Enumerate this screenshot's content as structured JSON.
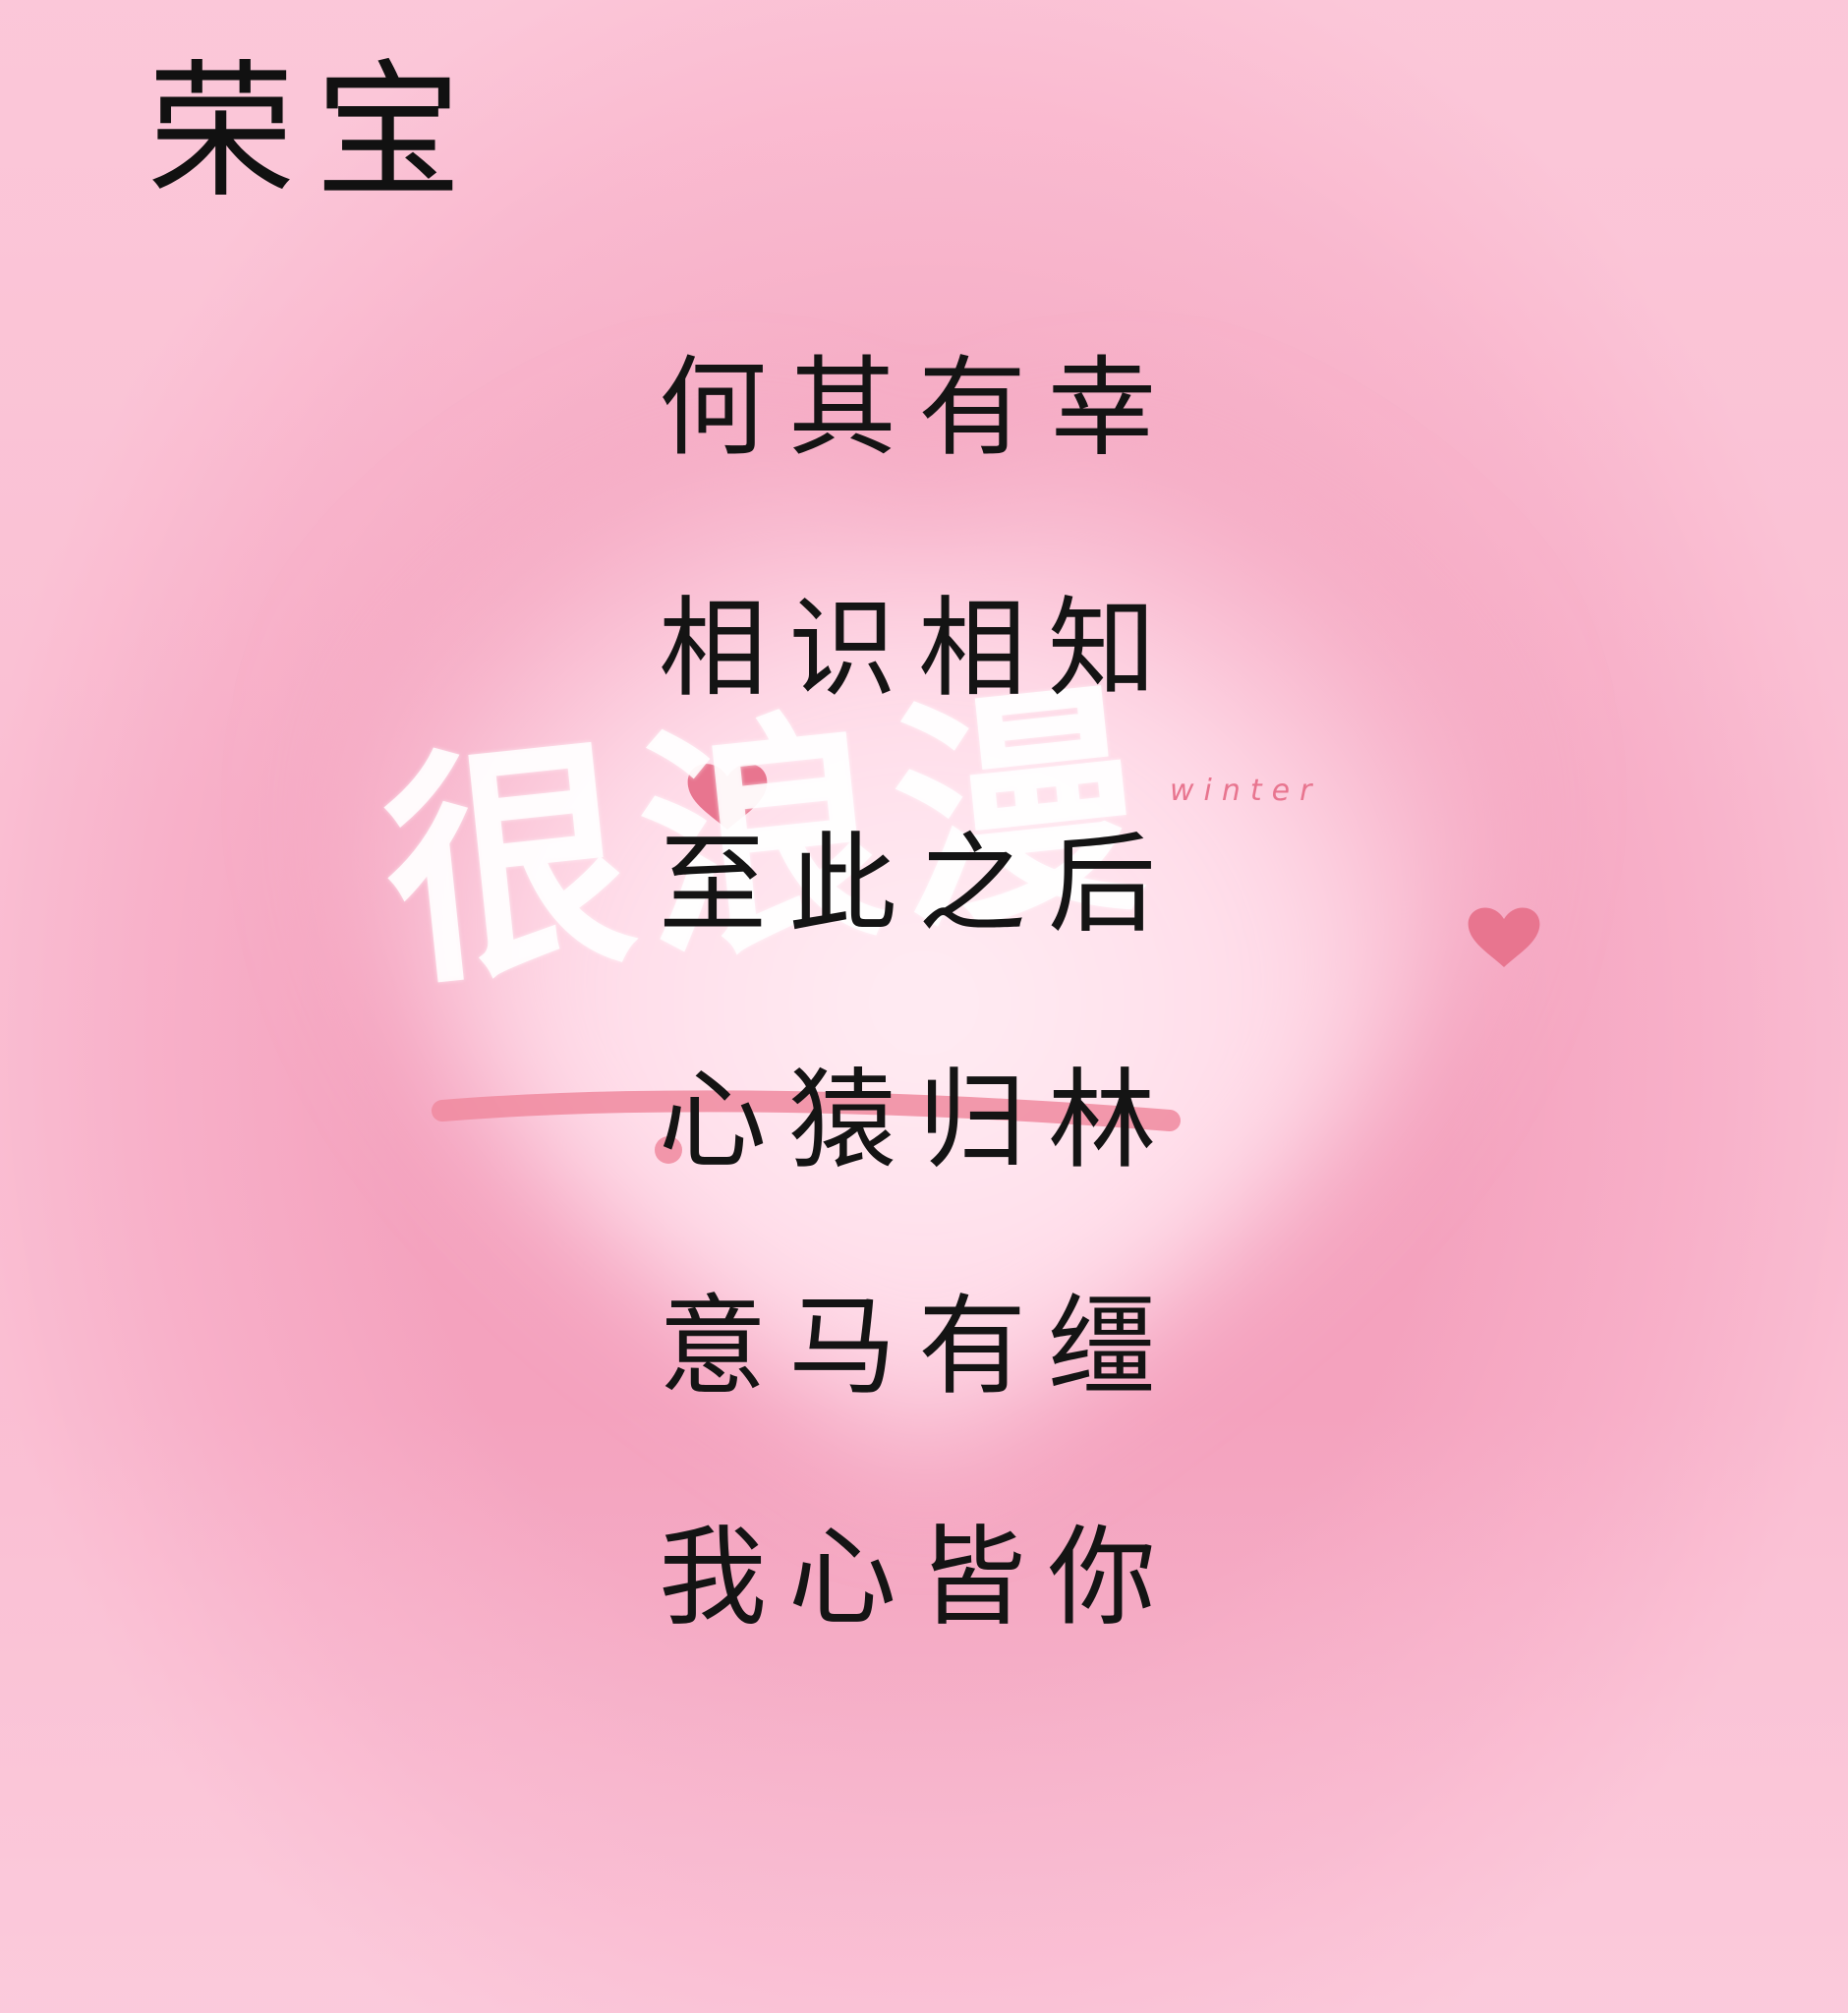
{
  "title": "荣宝",
  "poem": {
    "lines": [
      "何其有幸",
      "相识相知",
      "至此之后",
      "心猿归林",
      "意马有缰",
      "我心皆你"
    ]
  },
  "watermark": {
    "english": "winter",
    "chinese": "很浪漫"
  },
  "colors": {
    "background": "#f4a4bf",
    "heart_center": "#ffe4ef",
    "text": "#141414",
    "accent": "#e8758f"
  }
}
